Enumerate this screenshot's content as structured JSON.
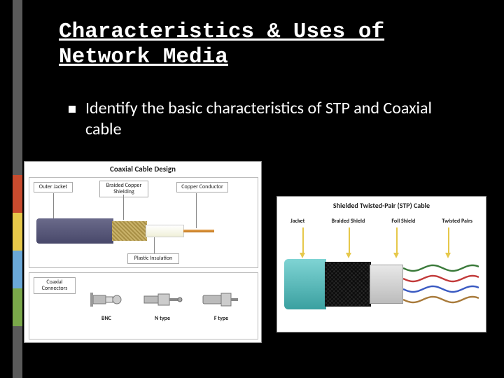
{
  "slide": {
    "title": "Characteristics & Uses of Network Media",
    "bullet": "Identify the basic characteristics of STP and Coaxial cable",
    "accent_colors": [
      "#5a5a5a",
      "#c84b2e",
      "#e6c84a",
      "#6aa8d8",
      "#7aa84a"
    ],
    "background": "#000000",
    "text_color": "#ffffff"
  },
  "coax": {
    "title": "Coaxial Cable Design",
    "labels": {
      "outer_jacket": "Outer Jacket",
      "braided_shield": "Braided Copper Shielding",
      "conductor": "Copper Conductor",
      "insulation": "Plastic Insulation",
      "connectors_label": "Coaxial Connectors"
    },
    "connectors": [
      {
        "name": "BNC"
      },
      {
        "name": "N type"
      },
      {
        "name": "F type"
      }
    ],
    "colors": {
      "jacket": "#5a5a7a",
      "braid": "#c9b26a",
      "insulation": "#f5f5e6",
      "conductor": "#d6904a"
    }
  },
  "stp": {
    "title": "Shielded Twisted-Pair (STP) Cable",
    "labels": [
      "Jacket",
      "Braided Shield",
      "Foil Shield",
      "Twisted Pairs"
    ],
    "arrow_color": "#e6c84a",
    "colors": {
      "jacket": "#5ac4c4",
      "braid": "#4a4a4a",
      "foil": "#d0d0d0"
    },
    "pairs": [
      {
        "c1": "#3a7a3a",
        "c2": "#ffffff"
      },
      {
        "c1": "#c23a3a",
        "c2": "#ffffff"
      },
      {
        "c1": "#3a5ac2",
        "c2": "#ffffff"
      },
      {
        "c1": "#a87a3a",
        "c2": "#ffffff"
      }
    ]
  }
}
